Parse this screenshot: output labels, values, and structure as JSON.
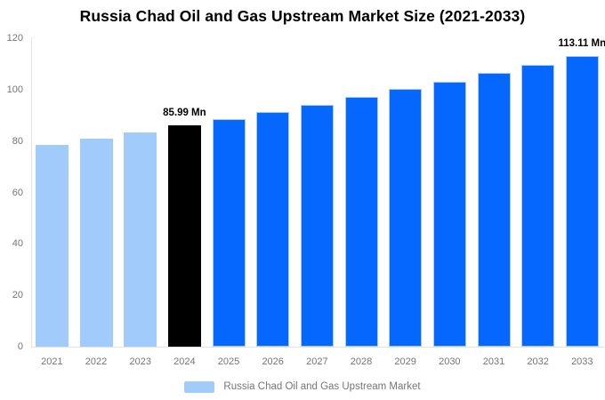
{
  "title": "Russia Chad Oil and Gas Upstream Market Size (2021-2033)",
  "legend": {
    "label": "Russia Chad Oil and Gas Upstream Market",
    "swatch_color": "#a1cbfa"
  },
  "colors": {
    "light_blue": "#a1cbfa",
    "highlight_black": "#000000",
    "primary_blue": "#0567fd",
    "bar_stroke": "#abccf2",
    "axis_line": "#e3e3e3",
    "axis_text": "#757575",
    "title_text": "#000000",
    "background": "#ffffff"
  },
  "chart_data": {
    "type": "bar",
    "title": "Russia Chad Oil and Gas Upstream Market Size (2021-2033)",
    "categories": [
      "2021",
      "2022",
      "2023",
      "2024",
      "2025",
      "2026",
      "2027",
      "2028",
      "2029",
      "2030",
      "2031",
      "2032",
      "2033"
    ],
    "values": [
      78.49,
      80.91,
      83.41,
      85.99,
      88.65,
      91.39,
      94.21,
      97.12,
      100.12,
      103.21,
      106.4,
      109.69,
      113.11
    ],
    "unit": "Mn",
    "color_roles": [
      "light_blue",
      "light_blue",
      "light_blue",
      "highlight_black",
      "primary_blue",
      "primary_blue",
      "primary_blue",
      "primary_blue",
      "primary_blue",
      "primary_blue",
      "primary_blue",
      "primary_blue",
      "primary_blue"
    ],
    "annotations": [
      {
        "category": "2024",
        "text": "85.99 Mn"
      },
      {
        "category": "2033",
        "text": "113.11 Mn"
      }
    ],
    "xlabel": "",
    "ylabel": "",
    "ylim": [
      0,
      120
    ],
    "yticks": [
      0,
      20,
      40,
      60,
      80,
      100,
      120
    ],
    "grid": false,
    "legend_position": "bottom",
    "legend_entries": [
      "Russia Chad Oil and Gas Upstream Market"
    ]
  }
}
